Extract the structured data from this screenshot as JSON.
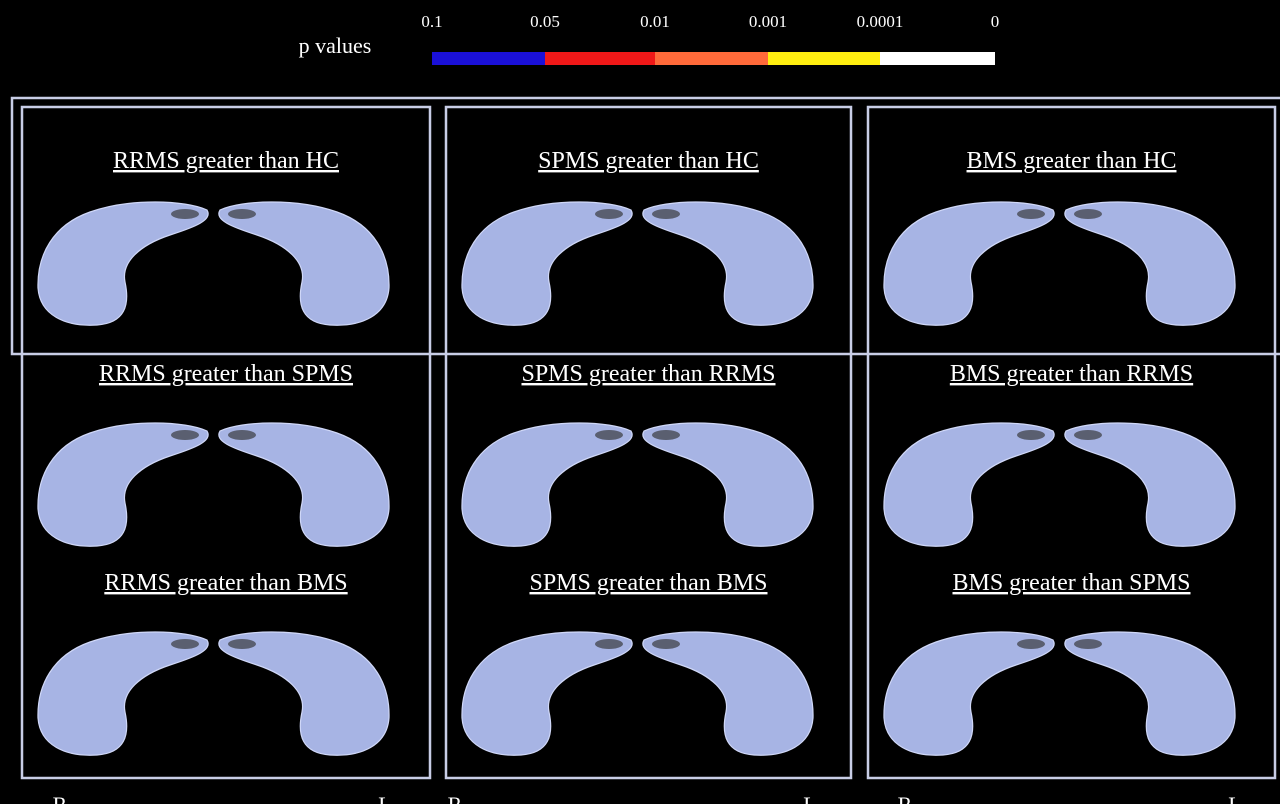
{
  "legend": {
    "title": "p values",
    "ticks": [
      "0.1",
      "0.05",
      "0.01",
      "0.001",
      "0.0001",
      "0"
    ]
  },
  "panels": [
    {
      "title": "RRMS greater than HC"
    },
    {
      "title": "SPMS greater than HC"
    },
    {
      "title": "BMS greater than HC"
    },
    {
      "title": "RRMS greater than SPMS"
    },
    {
      "title": "SPMS greater than RRMS"
    },
    {
      "title": "BMS greater than RRMS"
    },
    {
      "title": "RRMS greater than BMS"
    },
    {
      "title": "SPMS greater than BMS"
    },
    {
      "title": "BMS greater than SPMS"
    }
  ],
  "footer": {
    "columns": [
      {
        "left": "R",
        "right": "L"
      },
      {
        "left": "R",
        "right": "L"
      },
      {
        "left": "R",
        "right": "L"
      }
    ]
  }
}
